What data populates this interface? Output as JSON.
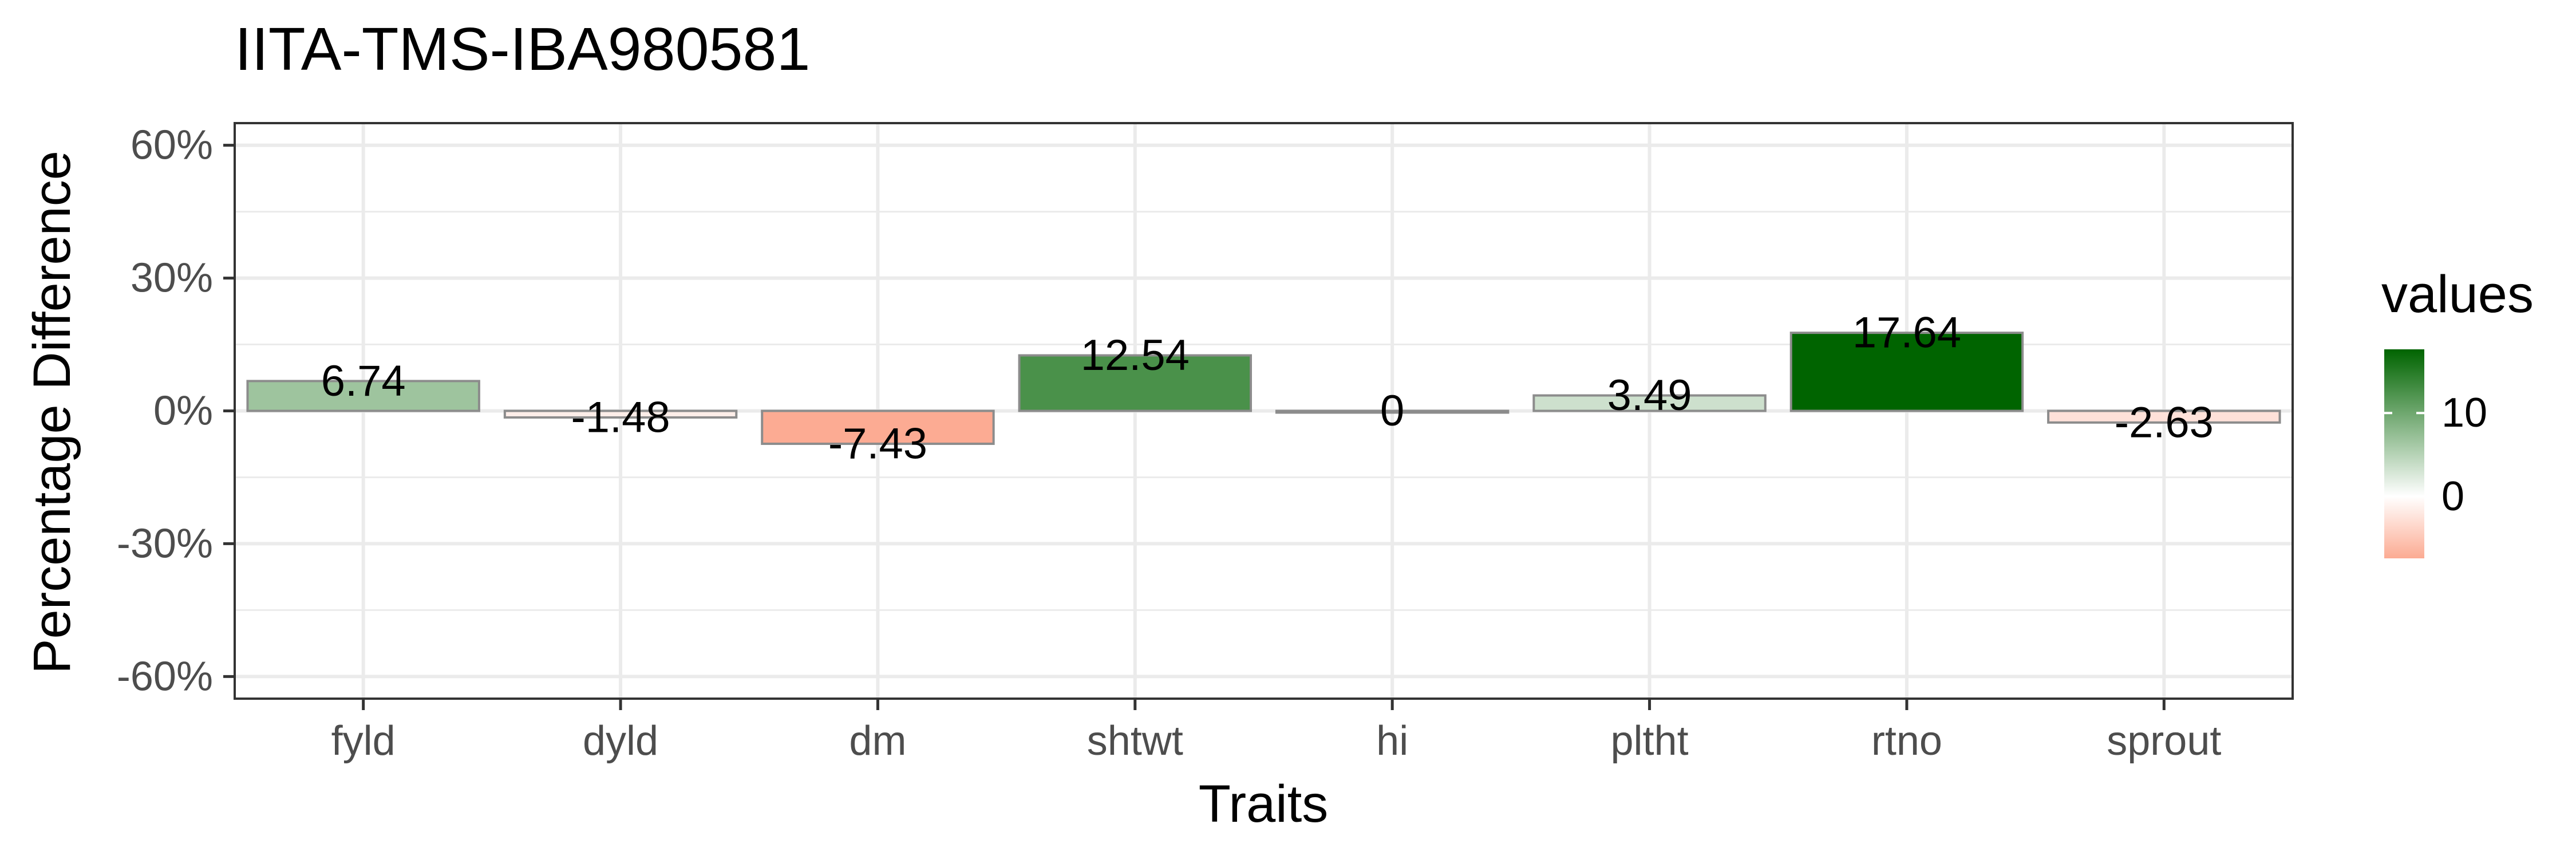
{
  "chart_data": {
    "type": "bar",
    "title": "IITA-TMS-IBA980581",
    "xlabel": "Traits",
    "ylabel": "Percentage Difference",
    "categories": [
      "fyld",
      "dyld",
      "dm",
      "shtwt",
      "hi",
      "pltht",
      "rtno",
      "sprout"
    ],
    "values": [
      6.74,
      -1.48,
      -7.43,
      12.54,
      0,
      3.49,
      17.64,
      -2.63
    ],
    "value_labels": [
      "6.74",
      "-1.48",
      "-7.43",
      "12.54",
      "0",
      "3.49",
      "17.64",
      "-2.63"
    ],
    "ylim": [
      -65,
      65
    ],
    "y_ticks": [
      -60,
      -30,
      0,
      30,
      60
    ],
    "y_tick_labels": [
      "-60%",
      "-30%",
      "0%",
      "30%",
      "60%"
    ],
    "grid": true,
    "legend": {
      "title": "values",
      "position": "right",
      "tick_values": [
        10,
        0
      ],
      "tick_labels": [
        "10",
        "0"
      ],
      "range": [
        -7.43,
        17.64
      ]
    },
    "colors": {
      "high": "#006400",
      "mid": "#ffffff",
      "low": "#fcab93",
      "bar_outline": "#8c8c8c",
      "panel_border": "#333333",
      "grid": "#ebebeb"
    }
  }
}
